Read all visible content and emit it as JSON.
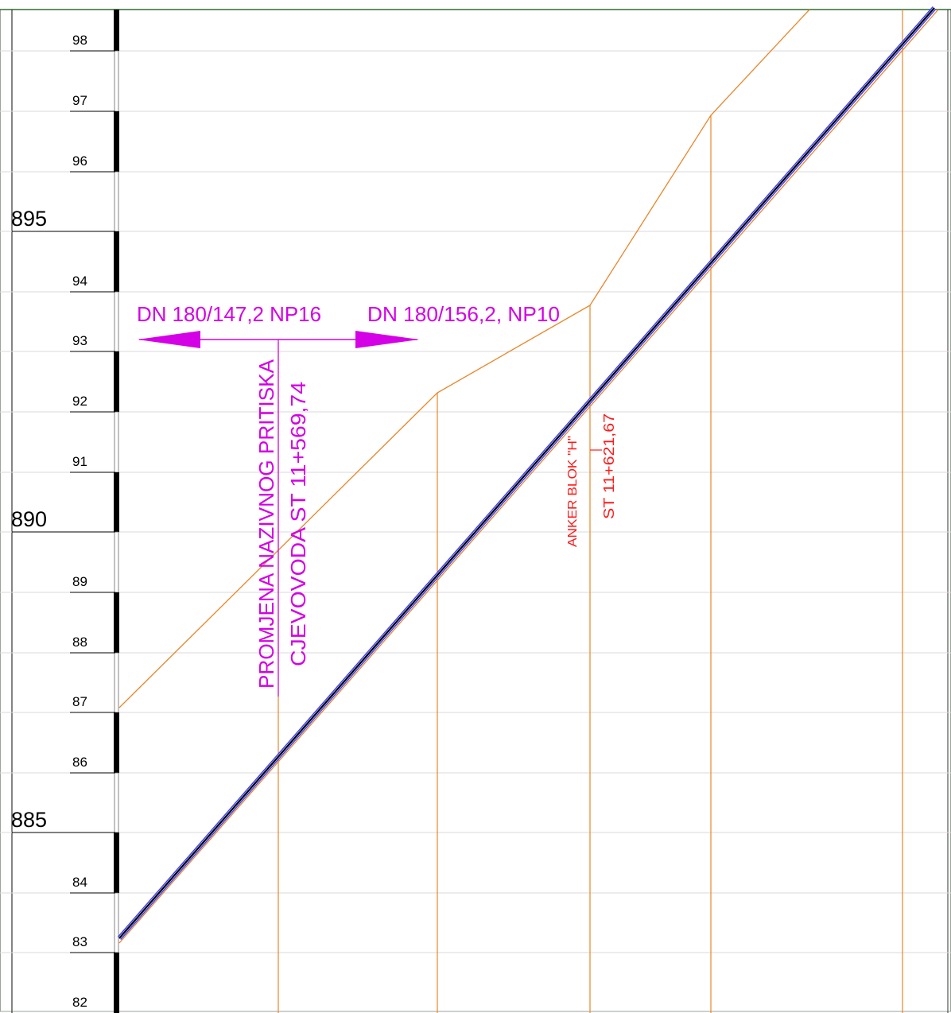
{
  "elevation_scale": {
    "minor_ticks": [
      "98",
      "97",
      "96",
      "94",
      "93",
      "92",
      "91",
      "89",
      "88",
      "87",
      "86",
      "84",
      "83",
      "82"
    ],
    "major_ticks": [
      "895",
      "890",
      "885"
    ]
  },
  "annotations": {
    "pipe_left": "DN 180/147,2 NP16",
    "pipe_right": "DN 180/156,2, NP10",
    "pressure_change_line1": "PROMJENA NAZIVNOG PRITISKA",
    "pressure_change_line2": "CJEVOVODA ST 11+569,74",
    "anchor_label": "ANKER BLOK \"H\"",
    "anchor_station": "ST 11+621,67"
  },
  "colors": {
    "grid": "#d9d9d9",
    "terrain": "#e8862a",
    "pipe": "#000000",
    "pipe_edge": "#3a3aff",
    "magenta": "#d400e6",
    "red": "#ff1a1a"
  }
}
